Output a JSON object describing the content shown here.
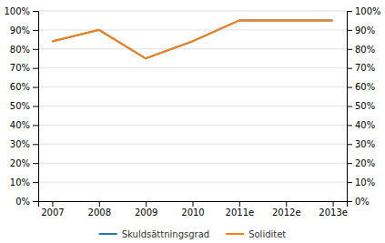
{
  "chart_data": {
    "type": "line",
    "categories": [
      "2007",
      "2008",
      "2009",
      "2010",
      "2011e",
      "2012e",
      "2013e"
    ],
    "series": [
      {
        "name": "Skuldsättningsgrad",
        "values": [
          84,
          90,
          75,
          84,
          95,
          95,
          95
        ]
      },
      {
        "name": "Soliditet",
        "values": [
          84,
          90,
          75,
          84,
          95,
          95,
          95
        ]
      }
    ],
    "ylim": [
      0,
      100
    ],
    "yticks": [
      {
        "value": 0,
        "label": "0%"
      },
      {
        "value": 10,
        "label": "10%"
      },
      {
        "value": 20,
        "label": "20%"
      },
      {
        "value": 30,
        "label": "30%"
      },
      {
        "value": 40,
        "label": "40%"
      },
      {
        "value": 50,
        "label": "50%"
      },
      {
        "value": 60,
        "label": "60%"
      },
      {
        "value": 70,
        "label": "70%"
      },
      {
        "value": 80,
        "label": "80%"
      },
      {
        "value": 90,
        "label": "90%"
      },
      {
        "value": 100,
        "label": "100%"
      }
    ],
    "y2lim": [
      0,
      100
    ],
    "y2ticks": [
      {
        "value": 0,
        "label": "0%"
      },
      {
        "value": 10,
        "label": "10%"
      },
      {
        "value": 20,
        "label": "20%"
      },
      {
        "value": 30,
        "label": "30%"
      },
      {
        "value": 40,
        "label": "40%"
      },
      {
        "value": 50,
        "label": "50%"
      },
      {
        "value": 60,
        "label": "60%"
      },
      {
        "value": 70,
        "label": "70%"
      },
      {
        "value": 80,
        "label": "80%"
      },
      {
        "value": 90,
        "label": "90%"
      },
      {
        "value": 100,
        "label": "100%"
      }
    ],
    "grid": true,
    "legend": "bottom"
  }
}
